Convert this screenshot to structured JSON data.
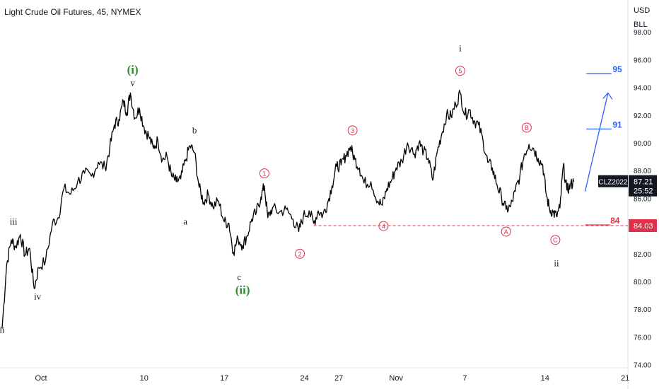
{
  "header": {
    "title": "Light Crude Oil Futures, 45, NYMEX",
    "currency": "USD",
    "unit": "BLL"
  },
  "price_tag": {
    "symbol": "CLZ2022",
    "price": "87.21",
    "countdown": "25:52",
    "level_price": "84.03"
  },
  "colors": {
    "candle": "#000000",
    "green": "#2e8b2e",
    "red": "#e0304a",
    "blue": "#2962ff",
    "axis_text": "#787b86"
  },
  "chart_data": {
    "type": "line",
    "ylim": [
      74,
      98
    ],
    "y_ticks": [
      "74.00",
      "76.00",
      "78.00",
      "80.00",
      "82.00",
      "84.00",
      "86.00",
      "88.00",
      "90.00",
      "92.00",
      "94.00",
      "96.00",
      "98.00"
    ],
    "x_ticks": [
      {
        "label": "Oct",
        "x": 0
      },
      {
        "label": "10",
        "x": 9
      },
      {
        "label": "17",
        "x": 16
      },
      {
        "label": "24",
        "x": 23
      },
      {
        "label": "27",
        "x": 26
      },
      {
        "label": "Nov",
        "x": 31
      },
      {
        "label": "7",
        "x": 37
      },
      {
        "label": "14",
        "x": 44
      },
      {
        "label": "21",
        "x": 51
      }
    ],
    "price_path": [
      [
        -3.4,
        76.6
      ],
      [
        -3.0,
        81.2
      ],
      [
        -2.6,
        83.0
      ],
      [
        -2.2,
        82.5
      ],
      [
        -1.8,
        83.4
      ],
      [
        -1.4,
        81.9
      ],
      [
        -1.0,
        82.4
      ],
      [
        -0.6,
        79.5
      ],
      [
        -0.2,
        81.0
      ],
      [
        0.4,
        81.5
      ],
      [
        1.0,
        84.2
      ],
      [
        1.5,
        84.6
      ],
      [
        2.0,
        86.7
      ],
      [
        2.6,
        86.3
      ],
      [
        3.2,
        87.2
      ],
      [
        3.8,
        87.8
      ],
      [
        4.4,
        87.6
      ],
      [
        5.0,
        88.6
      ],
      [
        5.6,
        88.2
      ],
      [
        6.0,
        89.6
      ],
      [
        6.4,
        91.3
      ],
      [
        6.8,
        91.7
      ],
      [
        7.2,
        93.0
      ],
      [
        7.5,
        92.2
      ],
      [
        7.8,
        93.6
      ],
      [
        8.2,
        91.8
      ],
      [
        8.6,
        92.5
      ],
      [
        9.0,
        91.1
      ],
      [
        9.4,
        90.5
      ],
      [
        9.8,
        89.6
      ],
      [
        10.2,
        90.2
      ],
      [
        10.6,
        88.8
      ],
      [
        11.0,
        89.0
      ],
      [
        11.4,
        87.6
      ],
      [
        11.8,
        87.2
      ],
      [
        12.2,
        87.4
      ],
      [
        12.6,
        88.7
      ],
      [
        13.0,
        89.8
      ],
      [
        13.4,
        89.3
      ],
      [
        13.8,
        86.8
      ],
      [
        14.2,
        85.7
      ],
      [
        14.6,
        86.3
      ],
      [
        15.0,
        85.4
      ],
      [
        15.5,
        85.8
      ],
      [
        16.0,
        84.3
      ],
      [
        16.4,
        84.2
      ],
      [
        16.8,
        82.1
      ],
      [
        17.2,
        83.1
      ],
      [
        17.6,
        82.6
      ],
      [
        18.0,
        83.3
      ],
      [
        18.4,
        84.5
      ],
      [
        18.8,
        85.0
      ],
      [
        19.2,
        86.1
      ],
      [
        19.5,
        86.9
      ],
      [
        19.8,
        84.6
      ],
      [
        20.2,
        85.3
      ],
      [
        20.8,
        85.0
      ],
      [
        21.4,
        85.2
      ],
      [
        22.0,
        84.5
      ],
      [
        22.5,
        83.6
      ],
      [
        22.9,
        84.7
      ],
      [
        23.4,
        85.1
      ],
      [
        23.8,
        84.2
      ],
      [
        24.2,
        85.1
      ],
      [
        24.6,
        84.8
      ],
      [
        25.0,
        85.6
      ],
      [
        25.4,
        86.9
      ],
      [
        25.8,
        88.3
      ],
      [
        26.2,
        88.4
      ],
      [
        26.6,
        89.1
      ],
      [
        27.0,
        89.7
      ],
      [
        27.4,
        88.8
      ],
      [
        27.8,
        88.2
      ],
      [
        28.2,
        87.1
      ],
      [
        28.8,
        87.2
      ],
      [
        29.4,
        85.8
      ],
      [
        29.8,
        85.5
      ],
      [
        30.2,
        86.7
      ],
      [
        30.6,
        87.3
      ],
      [
        31.0,
        88.2
      ],
      [
        31.5,
        88.7
      ],
      [
        32.0,
        90.0
      ],
      [
        32.6,
        89.2
      ],
      [
        33.0,
        90.0
      ],
      [
        33.4,
        89.4
      ],
      [
        33.8,
        88.9
      ],
      [
        34.2,
        87.3
      ],
      [
        34.6,
        89.4
      ],
      [
        35.0,
        90.7
      ],
      [
        35.4,
        92.0
      ],
      [
        35.8,
        91.9
      ],
      [
        36.2,
        92.8
      ],
      [
        36.6,
        93.6
      ],
      [
        37.0,
        92.0
      ],
      [
        37.4,
        92.4
      ],
      [
        37.8,
        91.6
      ],
      [
        38.2,
        91.3
      ],
      [
        38.6,
        90.1
      ],
      [
        39.0,
        88.6
      ],
      [
        39.4,
        88.2
      ],
      [
        39.8,
        87.0
      ],
      [
        40.2,
        86.1
      ],
      [
        40.6,
        85.2
      ],
      [
        41.0,
        85.4
      ],
      [
        41.4,
        86.5
      ],
      [
        41.8,
        87.6
      ],
      [
        42.2,
        89.2
      ],
      [
        42.6,
        89.9
      ],
      [
        43.0,
        89.6
      ],
      [
        43.4,
        88.9
      ],
      [
        43.8,
        88.4
      ],
      [
        44.1,
        86.3
      ],
      [
        44.4,
        85.2
      ],
      [
        44.7,
        85.0
      ],
      [
        45.0,
        84.7
      ],
      [
        45.3,
        85.3
      ],
      [
        45.6,
        88.4
      ],
      [
        45.9,
        86.6
      ],
      [
        46.2,
        86.9
      ],
      [
        46.5,
        87.2
      ]
    ],
    "horizontal_levels": [
      {
        "value": 84.03,
        "label": "84"
      }
    ],
    "target_levels": [
      {
        "value": 95,
        "label": "95"
      },
      {
        "value": 91,
        "label": "91"
      }
    ],
    "labels": [
      {
        "text": "ii",
        "x": -3.4,
        "y": 76.3,
        "color": "black"
      },
      {
        "text": "iii",
        "x": -2.4,
        "y": 84.1,
        "color": "black"
      },
      {
        "text": "iv",
        "x": -0.3,
        "y": 78.7,
        "color": "black"
      },
      {
        "text": "v",
        "x": 8.0,
        "y": 94.1,
        "color": "black"
      },
      {
        "text": "(i)",
        "x": 8.0,
        "y": 95.0,
        "color": "green"
      },
      {
        "text": "b",
        "x": 13.4,
        "y": 90.7,
        "color": "black"
      },
      {
        "text": "a",
        "x": 12.6,
        "y": 84.1,
        "color": "black"
      },
      {
        "text": "c",
        "x": 17.3,
        "y": 80.1,
        "color": "black"
      },
      {
        "text": "(ii)",
        "x": 17.6,
        "y": 79.1,
        "color": "green"
      },
      {
        "text": "i",
        "x": 36.6,
        "y": 96.6,
        "color": "black"
      },
      {
        "text": "ii",
        "x": 45.0,
        "y": 81.1,
        "color": "black"
      }
    ],
    "circled_labels": [
      {
        "text": "1",
        "x": 19.5,
        "y": 87.8
      },
      {
        "text": "2",
        "x": 22.6,
        "y": 82.0
      },
      {
        "text": "3",
        "x": 27.2,
        "y": 90.9
      },
      {
        "text": "4",
        "x": 29.9,
        "y": 84.0
      },
      {
        "text": "5",
        "x": 36.6,
        "y": 95.2
      },
      {
        "text": "A",
        "x": 40.6,
        "y": 83.6
      },
      {
        "text": "B",
        "x": 42.4,
        "y": 91.1
      },
      {
        "text": "C",
        "x": 44.9,
        "y": 83.0
      }
    ],
    "projection_arrow": {
      "from": [
        47.5,
        86.5
      ],
      "to": [
        49.5,
        93.6
      ]
    }
  }
}
